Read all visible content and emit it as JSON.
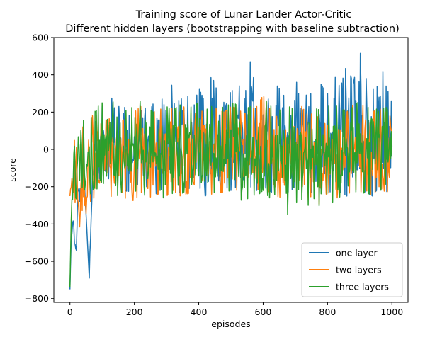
{
  "chart_data": {
    "type": "line",
    "title": "Training score of Lunar Lander Actor-Critic",
    "subtitle": "Different hidden layers (bootstrapping with baseline subtraction)",
    "xlabel": "episodes",
    "ylabel": "score",
    "xlim": [
      -50,
      1050
    ],
    "ylim": [
      -820,
      600
    ],
    "xticks": [
      0,
      200,
      400,
      600,
      800,
      1000
    ],
    "yticks": [
      -800,
      -600,
      -400,
      -200,
      0,
      200,
      400,
      600
    ],
    "xtick_labels": [
      "0",
      "200",
      "400",
      "600",
      "800",
      "1000"
    ],
    "ytick_labels": [
      "−800",
      "−600",
      "−400",
      "−200",
      "0",
      "200",
      "400",
      "600"
    ],
    "grid": false,
    "legend_position": "lower-right",
    "series": [
      {
        "name": "one layer",
        "color": "#1f77b4",
        "x": [
          0,
          5,
          10,
          15,
          20,
          25,
          30,
          40,
          50,
          60,
          70,
          80,
          90,
          100,
          120,
          140,
          160,
          180,
          200,
          220,
          240,
          260,
          280,
          300,
          320,
          340,
          360,
          380,
          400,
          420,
          440,
          460,
          480,
          500,
          520,
          540,
          560,
          580,
          600,
          620,
          640,
          660,
          680,
          700,
          720,
          740,
          760,
          780,
          800,
          820,
          840,
          860,
          880,
          900,
          920,
          940,
          960,
          980,
          1000
        ],
        "values": [
          -750,
          -400,
          -350,
          -450,
          -540,
          -100,
          -250,
          100,
          -350,
          -690,
          50,
          150,
          100,
          300,
          200,
          350,
          150,
          300,
          200,
          320,
          180,
          250,
          300,
          200,
          380,
          250,
          320,
          200,
          330,
          250,
          400,
          300,
          350,
          300,
          380,
          250,
          470,
          300,
          350,
          250,
          350,
          300,
          250,
          400,
          200,
          330,
          250,
          350,
          300,
          400,
          330,
          460,
          350,
          530,
          380,
          300,
          520,
          350,
          250
        ],
        "low_envelope": [
          -750,
          -450,
          -450,
          -520,
          -540,
          -250,
          -300,
          -250,
          -350,
          -690,
          -200,
          -250,
          -200,
          -180,
          -200,
          -220,
          -200,
          -230,
          -180,
          -200,
          -200,
          -250,
          -220,
          -200,
          -200,
          -230,
          -200,
          -220,
          -200,
          -250,
          -220,
          -240,
          -200,
          -220,
          -200,
          -230,
          -200,
          -220,
          -200,
          -220,
          -250,
          -220,
          -230,
          -200,
          -250,
          -240,
          -220,
          -280,
          -200,
          -270,
          -230,
          -250,
          -200,
          -220,
          -230,
          -250,
          -200,
          -230,
          -210
        ]
      },
      {
        "name": "two layers",
        "color": "#ff7f0e",
        "x": [
          0,
          5,
          10,
          15,
          20,
          25,
          30,
          40,
          50,
          60,
          70,
          80,
          90,
          100,
          120,
          140,
          160,
          180,
          200,
          220,
          240,
          260,
          280,
          300,
          320,
          340,
          360,
          380,
          400,
          420,
          440,
          460,
          480,
          500,
          520,
          540,
          560,
          580,
          600,
          620,
          640,
          660,
          680,
          700,
          720,
          740,
          760,
          780,
          800,
          820,
          840,
          860,
          880,
          900,
          920,
          940,
          960,
          980,
          1000
        ],
        "values": [
          -250,
          -40,
          -30,
          180,
          100,
          -260,
          -400,
          120,
          -350,
          150,
          180,
          200,
          120,
          150,
          160,
          200,
          150,
          180,
          200,
          230,
          150,
          200,
          220,
          180,
          230,
          200,
          240,
          180,
          210,
          200,
          240,
          210,
          200,
          230,
          220,
          190,
          210,
          230,
          290,
          220,
          180,
          150,
          200,
          210,
          230,
          180,
          200,
          150,
          130,
          170,
          230,
          200,
          240,
          190,
          280,
          200,
          220,
          200,
          170
        ],
        "low_envelope": [
          -250,
          -220,
          -300,
          -280,
          -310,
          -400,
          -440,
          -300,
          -330,
          -300,
          -250,
          -280,
          -220,
          -250,
          -260,
          -240,
          -280,
          -250,
          -280,
          -230,
          -250,
          -260,
          -230,
          -250,
          -220,
          -250,
          -240,
          -230,
          -250,
          -220,
          -240,
          -230,
          -230,
          -210,
          -220,
          -250,
          -230,
          -220,
          -200,
          -230,
          -250,
          -260,
          -280,
          -250,
          -300,
          -270,
          -230,
          -320,
          -220,
          -290,
          -230,
          -250,
          -210,
          -230,
          -220,
          -250,
          -200,
          -230,
          -220
        ]
      },
      {
        "name": "three layers",
        "color": "#2ca02c",
        "x": [
          0,
          5,
          10,
          15,
          20,
          25,
          30,
          40,
          50,
          60,
          70,
          80,
          90,
          100,
          120,
          140,
          160,
          180,
          200,
          220,
          240,
          260,
          280,
          300,
          320,
          340,
          360,
          380,
          400,
          420,
          440,
          460,
          480,
          500,
          520,
          540,
          560,
          580,
          600,
          620,
          640,
          660,
          680,
          700,
          720,
          740,
          760,
          780,
          800,
          820,
          840,
          860,
          880,
          900,
          920,
          940,
          960,
          980,
          1000
        ],
        "values": [
          -740,
          -280,
          50,
          100,
          -100,
          230,
          220,
          150,
          180,
          100,
          220,
          200,
          240,
          250,
          220,
          270,
          230,
          200,
          240,
          260,
          220,
          200,
          240,
          230,
          210,
          240,
          220,
          230,
          250,
          210,
          230,
          240,
          220,
          250,
          240,
          210,
          230,
          250,
          280,
          240,
          200,
          220,
          230,
          210,
          200,
          240,
          220,
          210,
          230,
          240,
          220,
          200,
          230,
          260,
          220,
          240,
          200,
          230,
          180
        ],
        "low_envelope": [
          -740,
          -300,
          -250,
          -200,
          -300,
          -250,
          -220,
          -200,
          -230,
          -250,
          -220,
          -200,
          -230,
          -240,
          -220,
          -260,
          -230,
          -250,
          -220,
          -240,
          -250,
          -230,
          -220,
          -300,
          -230,
          -250,
          -220,
          -250,
          -230,
          -220,
          -240,
          -220,
          -230,
          -220,
          -230,
          -300,
          -240,
          -250,
          -220,
          -260,
          -240,
          -230,
          -380,
          -250,
          -430,
          -300,
          -260,
          -320,
          -230,
          -300,
          -250,
          -260,
          -220,
          -240,
          -230,
          -250,
          -210,
          -240,
          -100
        ]
      }
    ]
  }
}
